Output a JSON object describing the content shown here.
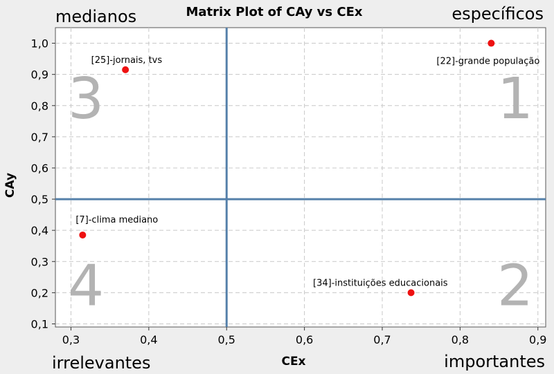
{
  "chart_data": {
    "type": "scatter",
    "title": "Matrix Plot of CAy vs CEx",
    "xlabel": "CEx",
    "ylabel": "CAy",
    "xlim": [
      0.28,
      0.91
    ],
    "ylim": [
      0.09,
      1.05
    ],
    "x_ticks": [
      "0,3",
      "0,4",
      "0,5",
      "0,6",
      "0,7",
      "0,8",
      "0,9"
    ],
    "x_tick_values": [
      0.3,
      0.4,
      0.5,
      0.6,
      0.7,
      0.8,
      0.9
    ],
    "y_ticks": [
      "1,0",
      "0,9",
      "0,8",
      "0,7",
      "0,6",
      "0,5",
      "0,4",
      "0,3",
      "0,2",
      "0,1"
    ],
    "y_tick_values": [
      1.0,
      0.9,
      0.8,
      0.7,
      0.6,
      0.5,
      0.4,
      0.3,
      0.2,
      0.1
    ],
    "grid": true,
    "reference_lines": {
      "x": 0.5,
      "y": 0.5
    },
    "point_color": "#ee1111",
    "reference_line_color": "#5580aa",
    "points": [
      {
        "x": 0.84,
        "y": 1.0,
        "label": "[22]-grande população",
        "label_pos": "below-left"
      },
      {
        "x": 0.37,
        "y": 0.915,
        "label": "[25]-jornais, tvs",
        "label_pos": "above-left"
      },
      {
        "x": 0.315,
        "y": 0.385,
        "label": "[7]-clima mediano",
        "label_pos": "above-right"
      },
      {
        "x": 0.737,
        "y": 0.2,
        "label": "[34]-instituições educacionais",
        "label_pos": "above-left"
      }
    ],
    "quadrants": [
      {
        "number": "1",
        "name": "específicos",
        "position": "top-right"
      },
      {
        "number": "2",
        "name": "importantes",
        "position": "bottom-right"
      },
      {
        "number": "3",
        "name": "medianos",
        "position": "top-left"
      },
      {
        "number": "4",
        "name": "irrelevantes",
        "position": "bottom-left"
      }
    ]
  }
}
